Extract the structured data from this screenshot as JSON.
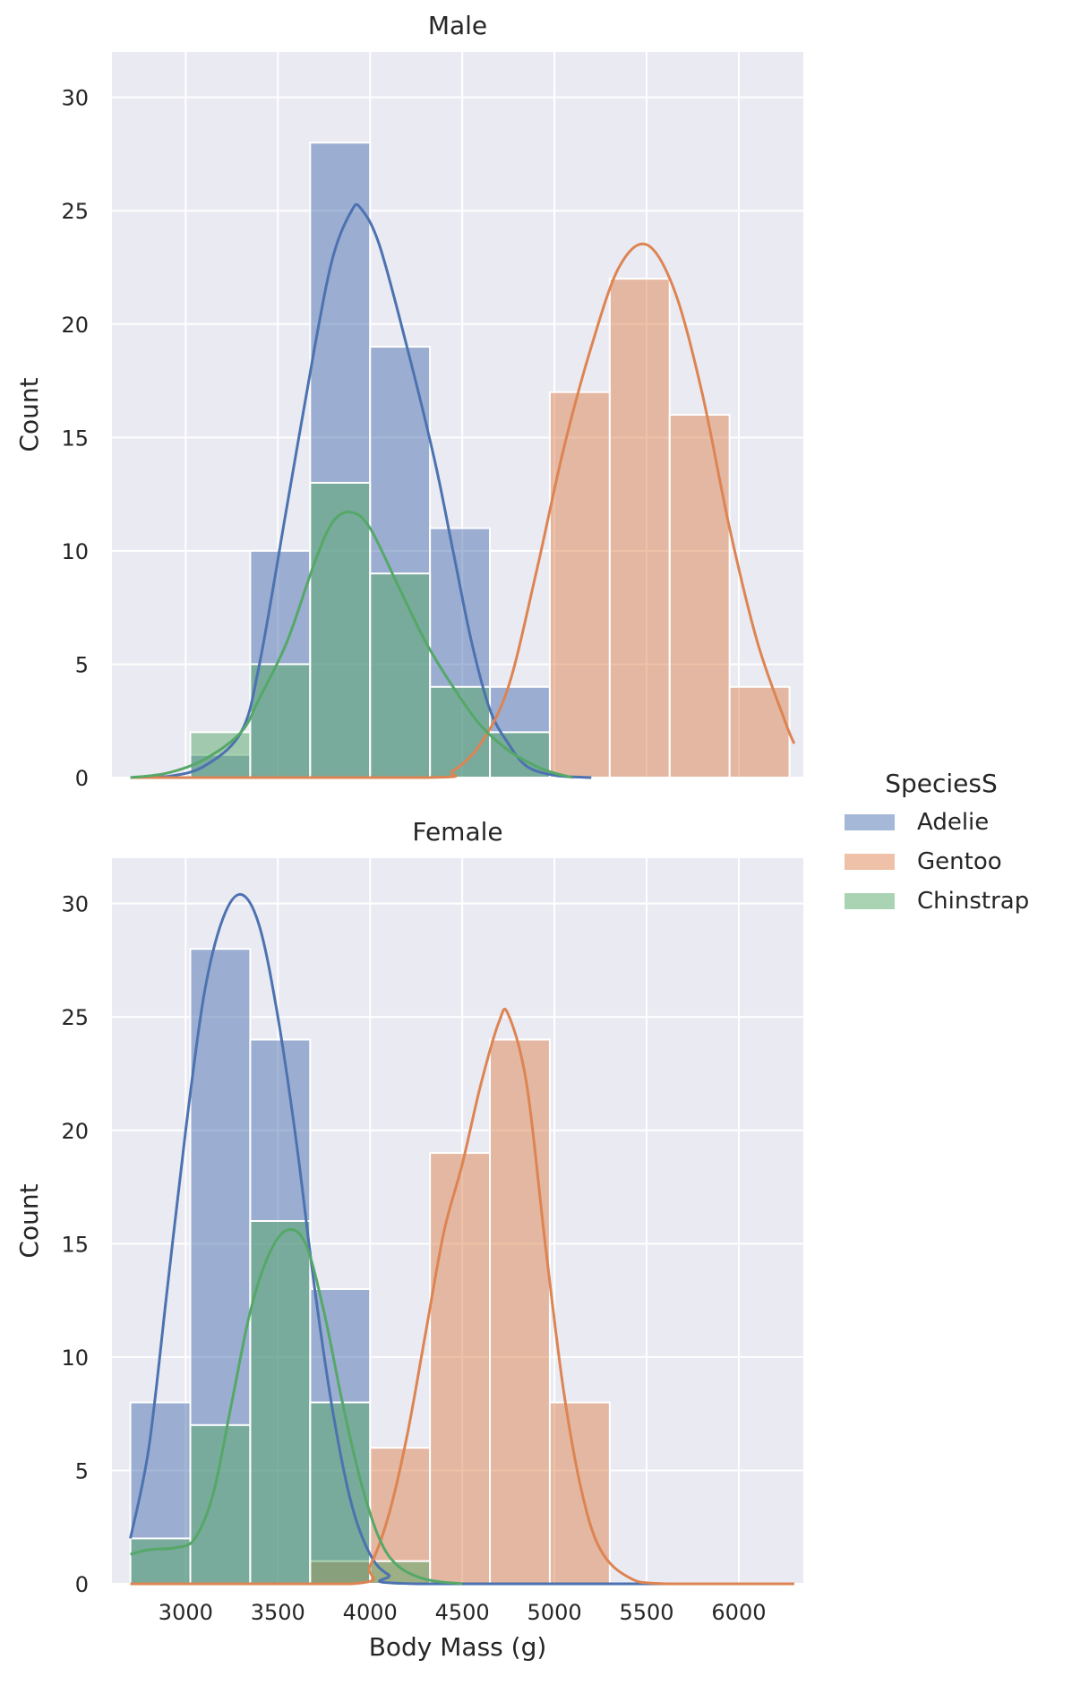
{
  "chart_data": {
    "type": "bar",
    "subtype": "faceted-histogram-with-kde",
    "xlabel": "Body Mass (g)",
    "ylabel": "Count",
    "xlim": [
      2600,
      6350
    ],
    "ylim": [
      0,
      32
    ],
    "xticks": [
      3000,
      3500,
      4000,
      4500,
      5000,
      5500,
      6000
    ],
    "yticks": [
      0,
      5,
      10,
      15,
      20,
      25,
      30
    ],
    "grid": true,
    "bin_edges": [
      2700,
      3025,
      3350,
      3675,
      4000,
      4325,
      4650,
      4975,
      5300,
      5625,
      5950,
      6275
    ],
    "legend": {
      "title": "SpeciesS",
      "placement": "right",
      "entries": [
        {
          "name": "Adelie",
          "color": "#4c72b0"
        },
        {
          "name": "Gentoo",
          "color": "#dd8452"
        },
        {
          "name": "Chinstrap",
          "color": "#55a868"
        }
      ]
    },
    "panels": [
      {
        "title": "Male",
        "series": [
          {
            "name": "Adelie",
            "color": "#4c72b0",
            "values": [
              0,
              1,
              10,
              28,
              19,
              11,
              4,
              0,
              0,
              0,
              0
            ],
            "kde": [
              [
                2700,
                0
              ],
              [
                2900,
                0.05
              ],
              [
                3100,
                0.5
              ],
              [
                3300,
                2
              ],
              [
                3400,
                5
              ],
              [
                3550,
                12
              ],
              [
                3700,
                19
              ],
              [
                3800,
                23
              ],
              [
                3900,
                25
              ],
              [
                3950,
                25.1
              ],
              [
                4050,
                23.5
              ],
              [
                4200,
                19
              ],
              [
                4350,
                14
              ],
              [
                4450,
                10
              ],
              [
                4550,
                6
              ],
              [
                4650,
                3
              ],
              [
                4750,
                1.5
              ],
              [
                4850,
                0.5
              ],
              [
                5000,
                0.1
              ],
              [
                5200,
                0
              ]
            ]
          },
          {
            "name": "Gentoo",
            "color": "#dd8452",
            "values": [
              0,
              0,
              0,
              0,
              0,
              0,
              0,
              17,
              22,
              16,
              4
            ],
            "kde": [
              [
                2700,
                0
              ],
              [
                4300,
                0
              ],
              [
                4450,
                0.3
              ],
              [
                4600,
                1.5
              ],
              [
                4750,
                4
              ],
              [
                4900,
                9
              ],
              [
                5050,
                14.5
              ],
              [
                5200,
                19
              ],
              [
                5350,
                22.5
              ],
              [
                5500,
                23.5
              ],
              [
                5650,
                21.5
              ],
              [
                5800,
                17
              ],
              [
                5950,
                11
              ],
              [
                6100,
                6
              ],
              [
                6250,
                2.5
              ],
              [
                6300,
                1.5
              ]
            ]
          },
          {
            "name": "Chinstrap",
            "color": "#55a868",
            "values": [
              0,
              2,
              5,
              13,
              9,
              4,
              2,
              0,
              0,
              0,
              0
            ],
            "kde": [
              [
                2700,
                0
              ],
              [
                2900,
                0.2
              ],
              [
                3100,
                0.8
              ],
              [
                3300,
                2
              ],
              [
                3400,
                3.5
              ],
              [
                3550,
                6
              ],
              [
                3700,
                9.5
              ],
              [
                3800,
                11.3
              ],
              [
                3900,
                11.7
              ],
              [
                4000,
                11
              ],
              [
                4150,
                8.5
              ],
              [
                4300,
                6
              ],
              [
                4450,
                4
              ],
              [
                4600,
                2.3
              ],
              [
                4750,
                1.2
              ],
              [
                4900,
                0.5
              ],
              [
                5000,
                0.2
              ],
              [
                5100,
                0
              ]
            ]
          }
        ]
      },
      {
        "title": "Female",
        "series": [
          {
            "name": "Adelie",
            "color": "#4c72b0",
            "values": [
              8,
              28,
              24,
              13,
              0,
              0,
              0,
              0,
              0,
              0,
              0
            ],
            "kde": [
              [
                2700,
                2
              ],
              [
                2800,
                6
              ],
              [
                2900,
                13
              ],
              [
                3000,
                20
              ],
              [
                3100,
                26
              ],
              [
                3200,
                29.3
              ],
              [
                3300,
                30.4
              ],
              [
                3400,
                29
              ],
              [
                3500,
                25
              ],
              [
                3600,
                19.5
              ],
              [
                3700,
                13
              ],
              [
                3800,
                7.5
              ],
              [
                3900,
                3.5
              ],
              [
                4000,
                1.3
              ],
              [
                4100,
                0.4
              ],
              [
                4250,
                0
              ],
              [
                6300,
                0
              ]
            ]
          },
          {
            "name": "Gentoo",
            "color": "#dd8452",
            "values": [
              0,
              0,
              0,
              1,
              6,
              19,
              24,
              8,
              0,
              0,
              0
            ],
            "kde": [
              [
                2700,
                0
              ],
              [
                3900,
                0
              ],
              [
                4000,
                0.8
              ],
              [
                4100,
                3
              ],
              [
                4200,
                6.5
              ],
              [
                4300,
                11
              ],
              [
                4400,
                15.5
              ],
              [
                4500,
                18.5
              ],
              [
                4600,
                22
              ],
              [
                4700,
                24.8
              ],
              [
                4750,
                25.1
              ],
              [
                4850,
                22
              ],
              [
                4950,
                15
              ],
              [
                5050,
                8.5
              ],
              [
                5150,
                4
              ],
              [
                5250,
                1.5
              ],
              [
                5400,
                0.3
              ],
              [
                5600,
                0
              ],
              [
                6300,
                0
              ]
            ]
          },
          {
            "name": "Chinstrap",
            "color": "#55a868",
            "values": [
              2,
              7,
              16,
              8,
              1,
              0,
              0,
              0,
              0,
              0,
              0
            ],
            "kde": [
              [
                2700,
                1.3
              ],
              [
                2800,
                1.5
              ],
              [
                2950,
                1.6
              ],
              [
                3050,
                2
              ],
              [
                3150,
                4
              ],
              [
                3250,
                8
              ],
              [
                3350,
                12
              ],
              [
                3450,
                14.5
              ],
              [
                3550,
                15.6
              ],
              [
                3650,
                15
              ],
              [
                3750,
                12
              ],
              [
                3850,
                8
              ],
              [
                3950,
                4.5
              ],
              [
                4050,
                2
              ],
              [
                4150,
                0.8
              ],
              [
                4300,
                0.2
              ],
              [
                4500,
                0
              ]
            ]
          }
        ]
      }
    ]
  }
}
